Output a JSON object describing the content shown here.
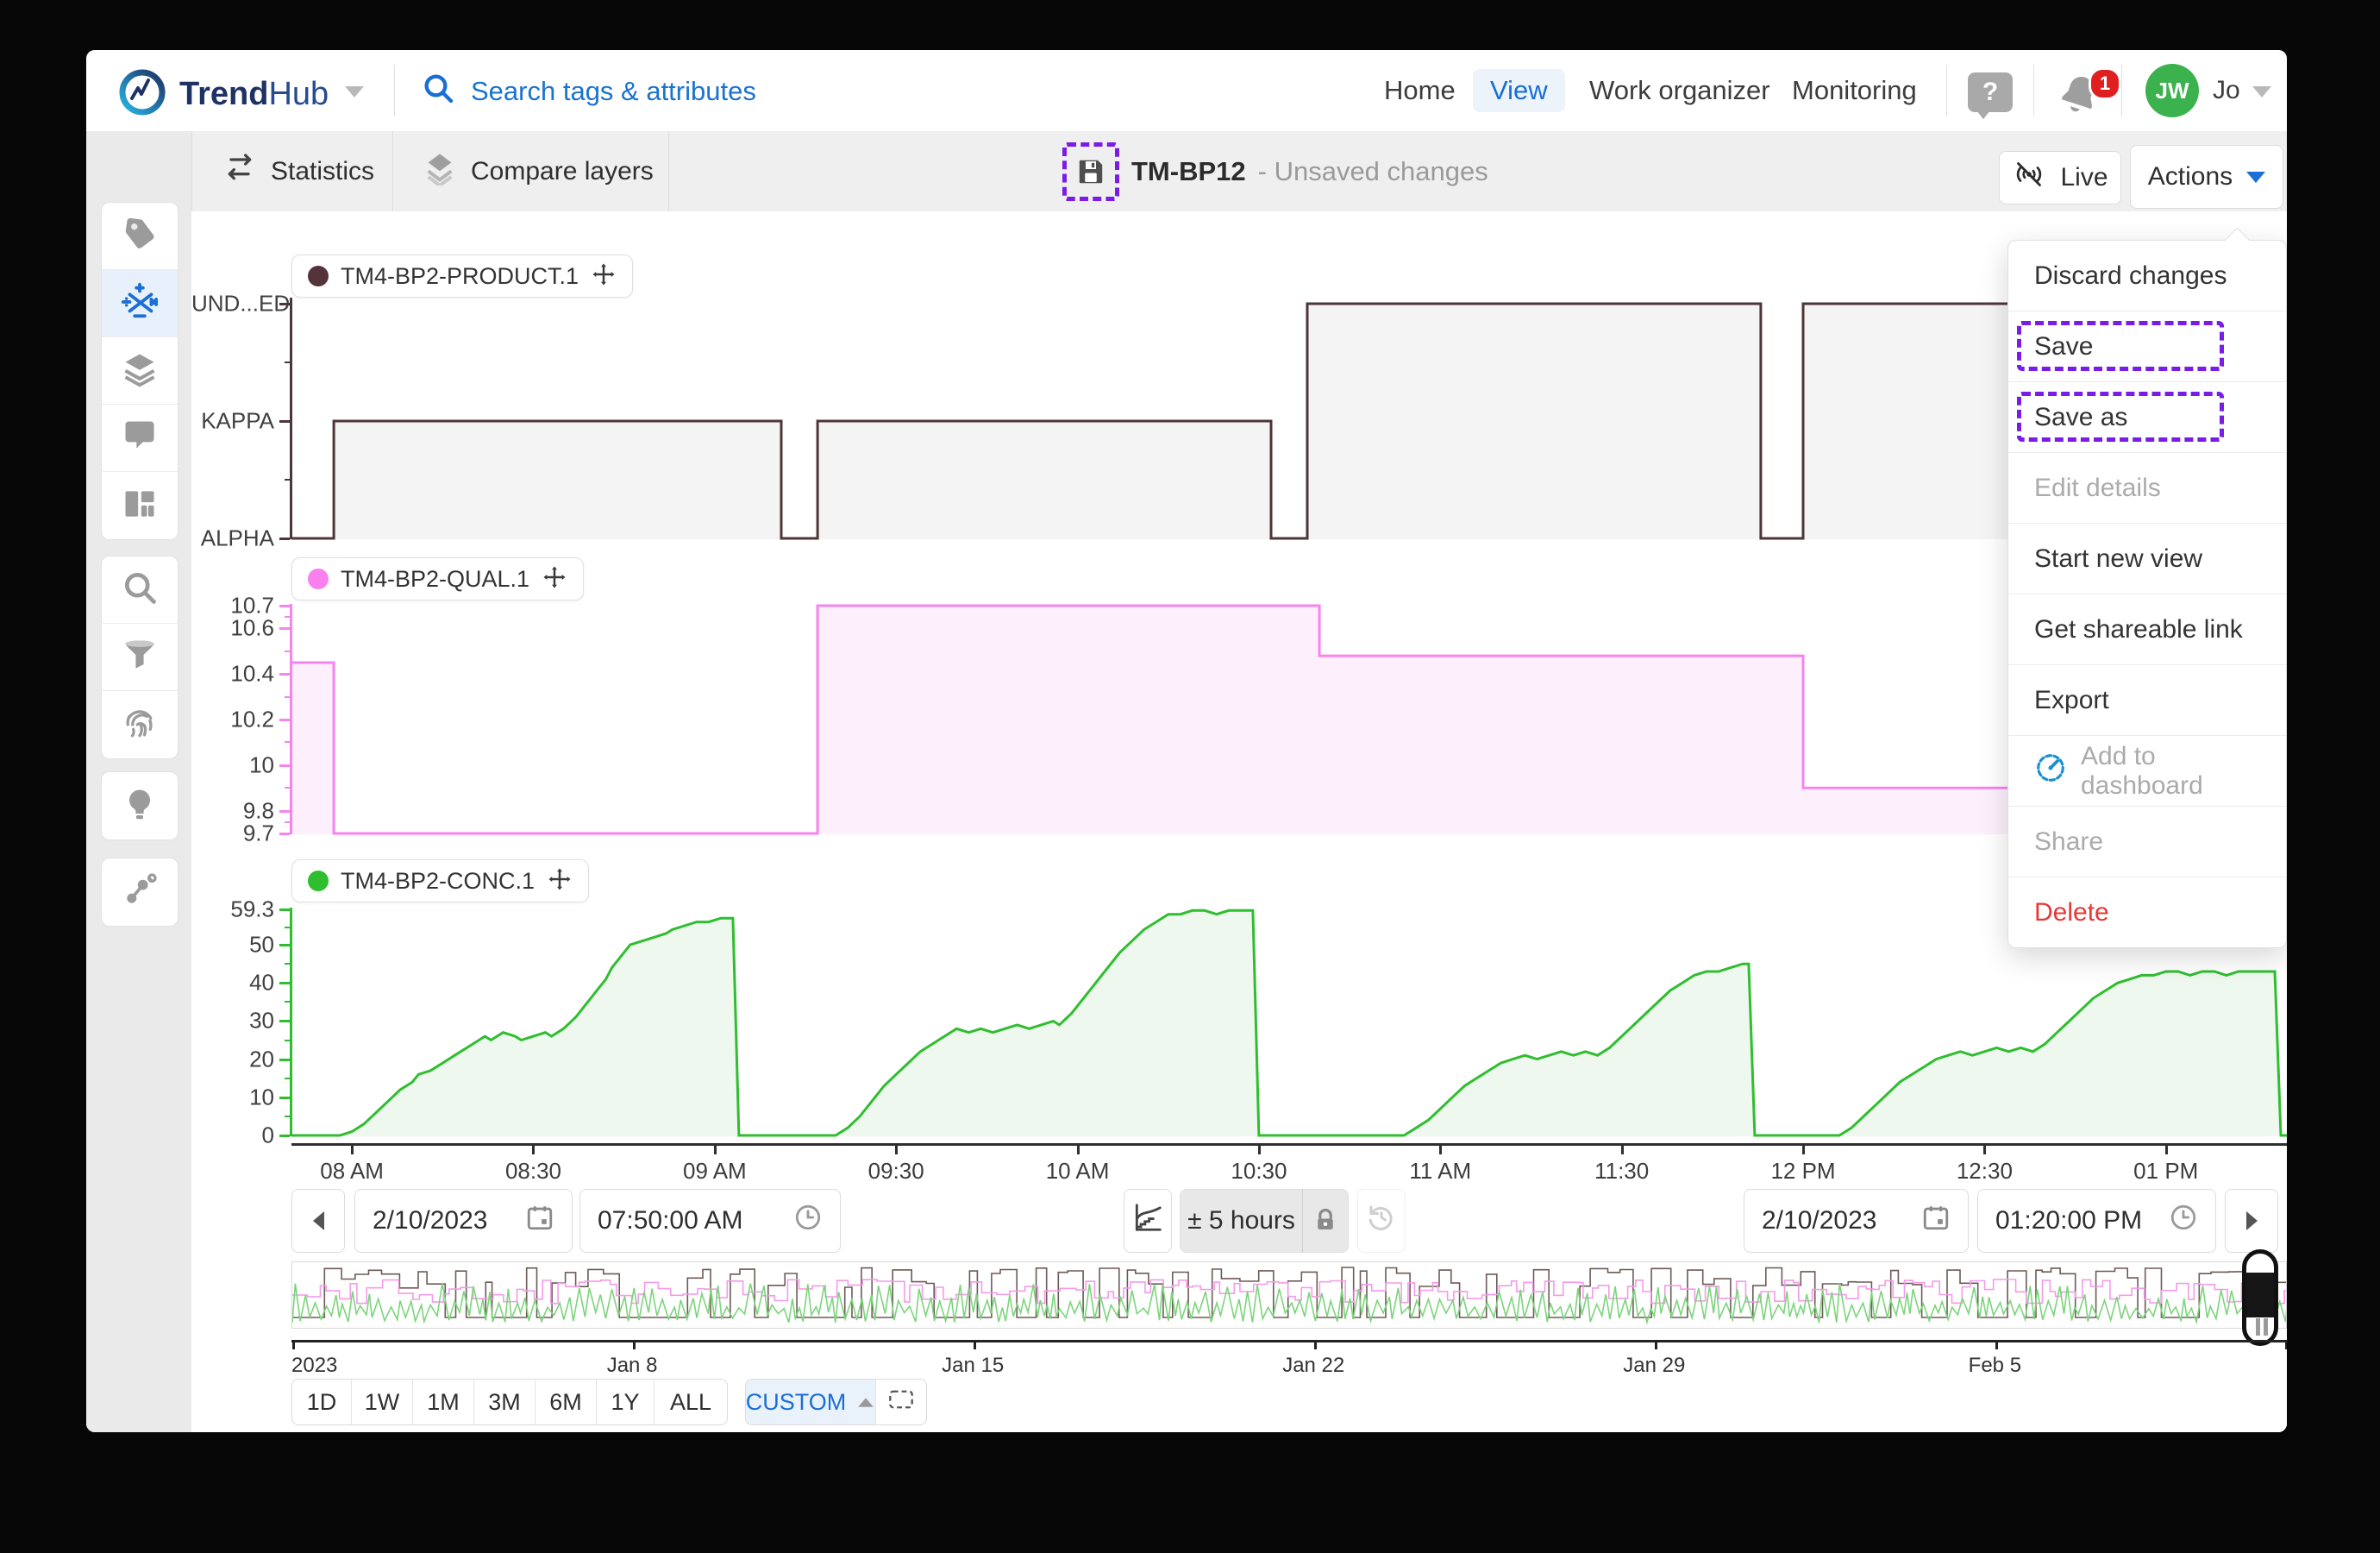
{
  "topbar": {
    "brand": {
      "trend": "Trend",
      "hub": "Hub"
    },
    "search_placeholder": "Search tags & attributes",
    "nav": [
      {
        "label": "Home",
        "active": false
      },
      {
        "label": "View",
        "active": true
      },
      {
        "label": "Work organizer",
        "active": false
      },
      {
        "label": "Monitoring",
        "active": false
      }
    ],
    "help_label": "?",
    "notification_count": "1",
    "user": {
      "initials": "JW",
      "name": "Jo"
    }
  },
  "toolbar": {
    "statistics_label": "Statistics",
    "compare_layers_label": "Compare layers",
    "view_name": "TM-BP12",
    "view_status": "- Unsaved changes",
    "live_label": "Live",
    "actions_label": "Actions"
  },
  "actions_menu": {
    "items": [
      {
        "label": "Discard changes",
        "state": "normal"
      },
      {
        "label": "Save",
        "state": "highlighted"
      },
      {
        "label": "Save as",
        "state": "highlighted"
      },
      {
        "label": "Edit details",
        "state": "disabled"
      },
      {
        "label": "Start new view",
        "state": "normal"
      },
      {
        "label": "Get shareable link",
        "state": "normal"
      },
      {
        "label": "Export",
        "state": "normal"
      },
      {
        "label": "Add to dashboard",
        "state": "disabled",
        "icon": "dashboard-gauge-icon"
      },
      {
        "label": "Share",
        "state": "disabled"
      },
      {
        "label": "Delete",
        "state": "danger"
      }
    ]
  },
  "time_controls": {
    "start_date": "2/10/2023",
    "start_time": "07:50:00 AM",
    "duration": "± 5 hours",
    "end_date": "2/10/2023",
    "end_time": "01:20:00 PM"
  },
  "zoom_presets": [
    "1D",
    "1W",
    "1M",
    "3M",
    "6M",
    "1Y",
    "ALL"
  ],
  "custom_label": "CUSTOM",
  "timeline": {
    "labels": [
      "2023",
      "Jan 8",
      "Jan 15",
      "Jan 22",
      "Jan 29",
      "Feb 5"
    ],
    "label_days": [
      0,
      7,
      14,
      21,
      28,
      35
    ],
    "total_days": 41
  },
  "chart_data": [
    {
      "type": "area",
      "subtype": "step",
      "name": "TM4-BP2-PRODUCT.1",
      "color": "#4e3539",
      "fill": "#f5f4f4",
      "categorical": true,
      "categories": [
        "UNDEFINED",
        "KAPPA",
        "ALPHA"
      ],
      "y_tick_labels": [
        "ALPHA",
        "KAPPA",
        "UND...ED"
      ],
      "x_unit": "minutes after 07:50 AM on 2/10/2023",
      "xlim": [
        0,
        330
      ],
      "points": [
        [
          0,
          "UNDEFINED"
        ],
        [
          7,
          "KAPPA"
        ],
        [
          81,
          "UNDEFINED"
        ],
        [
          87,
          "KAPPA"
        ],
        [
          162,
          "UNDEFINED"
        ],
        [
          168,
          "ALPHA"
        ],
        [
          243,
          "UNDEFINED"
        ],
        [
          250,
          "ALPHA"
        ],
        [
          330,
          "ALPHA"
        ]
      ]
    },
    {
      "type": "area",
      "subtype": "step",
      "name": "TM4-BP2-QUAL.1",
      "color": "#f783ef",
      "fill": "#fdf0fc",
      "categorical": false,
      "ylim": [
        9.7,
        10.7
      ],
      "y_ticks": [
        10.7,
        10.6,
        10.4,
        10.2,
        10,
        9.8,
        9.7
      ],
      "x_unit": "minutes after 07:50 AM on 2/10/2023",
      "xlim": [
        0,
        330
      ],
      "points": [
        [
          0,
          10.45
        ],
        [
          7,
          9.7
        ],
        [
          87,
          10.7
        ],
        [
          170,
          10.48
        ],
        [
          250,
          9.9
        ],
        [
          330,
          9.9
        ]
      ]
    },
    {
      "type": "area",
      "subtype": "line",
      "name": "TM4-BP2-CONC.1",
      "color": "#2fbe2f",
      "fill": "#eff8ef",
      "categorical": false,
      "ylim": [
        0,
        59.3
      ],
      "y_ticks": [
        59.3,
        50,
        40,
        30,
        20,
        10,
        0
      ],
      "x_unit": "minutes after 07:50 AM on 2/10/2023",
      "xlim": [
        0,
        330
      ],
      "points": [
        [
          0,
          0
        ],
        [
          8,
          0
        ],
        [
          10,
          1
        ],
        [
          12,
          3
        ],
        [
          14,
          6
        ],
        [
          16,
          9
        ],
        [
          18,
          12
        ],
        [
          20,
          14
        ],
        [
          21,
          16
        ],
        [
          23,
          17
        ],
        [
          25,
          19
        ],
        [
          27,
          21
        ],
        [
          28,
          22
        ],
        [
          30,
          24
        ],
        [
          32,
          26
        ],
        [
          33,
          25
        ],
        [
          34,
          26
        ],
        [
          35,
          27
        ],
        [
          37,
          26
        ],
        [
          38,
          25
        ],
        [
          40,
          26
        ],
        [
          42,
          27
        ],
        [
          43,
          26
        ],
        [
          45,
          28
        ],
        [
          47,
          31
        ],
        [
          48,
          33
        ],
        [
          50,
          37
        ],
        [
          52,
          41
        ],
        [
          53,
          44
        ],
        [
          55,
          48
        ],
        [
          56,
          50
        ],
        [
          58,
          51
        ],
        [
          60,
          52
        ],
        [
          62,
          53
        ],
        [
          63,
          54
        ],
        [
          65,
          55
        ],
        [
          67,
          56
        ],
        [
          69,
          56
        ],
        [
          71,
          57
        ],
        [
          73,
          57
        ],
        [
          74,
          0
        ],
        [
          76,
          0
        ],
        [
          90,
          0
        ],
        [
          92,
          2
        ],
        [
          94,
          5
        ],
        [
          96,
          9
        ],
        [
          98,
          13
        ],
        [
          100,
          16
        ],
        [
          102,
          19
        ],
        [
          104,
          22
        ],
        [
          106,
          24
        ],
        [
          108,
          26
        ],
        [
          110,
          28
        ],
        [
          112,
          27
        ],
        [
          114,
          28
        ],
        [
          116,
          27
        ],
        [
          118,
          28
        ],
        [
          120,
          29
        ],
        [
          122,
          28
        ],
        [
          124,
          29
        ],
        [
          126,
          30
        ],
        [
          127,
          29
        ],
        [
          129,
          32
        ],
        [
          131,
          36
        ],
        [
          133,
          40
        ],
        [
          135,
          44
        ],
        [
          137,
          48
        ],
        [
          139,
          51
        ],
        [
          141,
          54
        ],
        [
          143,
          56
        ],
        [
          145,
          58
        ],
        [
          147,
          58
        ],
        [
          149,
          59
        ],
        [
          151,
          59
        ],
        [
          153,
          58
        ],
        [
          155,
          59
        ],
        [
          157,
          59
        ],
        [
          159,
          59
        ],
        [
          160,
          0
        ],
        [
          162,
          0
        ],
        [
          184,
          0
        ],
        [
          186,
          2
        ],
        [
          188,
          4
        ],
        [
          190,
          7
        ],
        [
          192,
          10
        ],
        [
          194,
          13
        ],
        [
          196,
          15
        ],
        [
          198,
          17
        ],
        [
          200,
          19
        ],
        [
          202,
          20
        ],
        [
          204,
          21
        ],
        [
          206,
          20
        ],
        [
          208,
          21
        ],
        [
          210,
          22
        ],
        [
          212,
          21
        ],
        [
          214,
          22
        ],
        [
          216,
          21
        ],
        [
          218,
          23
        ],
        [
          220,
          26
        ],
        [
          222,
          29
        ],
        [
          224,
          32
        ],
        [
          226,
          35
        ],
        [
          228,
          38
        ],
        [
          230,
          40
        ],
        [
          232,
          42
        ],
        [
          234,
          43
        ],
        [
          236,
          43
        ],
        [
          238,
          44
        ],
        [
          240,
          45
        ],
        [
          241,
          45
        ],
        [
          242,
          0
        ],
        [
          244,
          0
        ],
        [
          256,
          0
        ],
        [
          258,
          2
        ],
        [
          260,
          5
        ],
        [
          262,
          8
        ],
        [
          264,
          11
        ],
        [
          266,
          14
        ],
        [
          268,
          16
        ],
        [
          270,
          18
        ],
        [
          272,
          20
        ],
        [
          274,
          21
        ],
        [
          276,
          22
        ],
        [
          278,
          21
        ],
        [
          280,
          22
        ],
        [
          282,
          23
        ],
        [
          284,
          22
        ],
        [
          286,
          23
        ],
        [
          288,
          22
        ],
        [
          290,
          24
        ],
        [
          292,
          27
        ],
        [
          294,
          30
        ],
        [
          296,
          33
        ],
        [
          298,
          36
        ],
        [
          300,
          38
        ],
        [
          302,
          40
        ],
        [
          304,
          41
        ],
        [
          306,
          42
        ],
        [
          308,
          42
        ],
        [
          310,
          43
        ],
        [
          312,
          43
        ],
        [
          314,
          42
        ],
        [
          316,
          43
        ],
        [
          318,
          43
        ],
        [
          320,
          42
        ],
        [
          322,
          43
        ],
        [
          324,
          43
        ],
        [
          326,
          43
        ],
        [
          328,
          43
        ],
        [
          329,
          0
        ],
        [
          330,
          0
        ]
      ]
    }
  ],
  "x_axis": {
    "labels": [
      "08 AM",
      "08:30",
      "09 AM",
      "09:30",
      "10 AM",
      "10:30",
      "11 AM",
      "11:30",
      "12 PM",
      "12:30",
      "01 PM"
    ],
    "first_label_minute": 10,
    "label_interval_minutes": 30
  }
}
